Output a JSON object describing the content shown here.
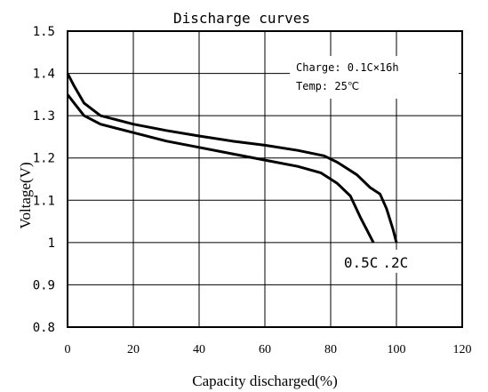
{
  "chart_data": {
    "type": "line",
    "title": "Discharge curves",
    "xlabel": "Capacity discharged(%)",
    "ylabel": "Voltage(V)",
    "xlim": [
      0,
      120
    ],
    "ylim": [
      0.8,
      1.5
    ],
    "x_ticks": [
      "0",
      "20",
      "40",
      "60",
      "80",
      "100",
      "120"
    ],
    "y_ticks": [
      "0.8",
      "0.9",
      "1",
      "1.1",
      "1.2",
      "1.3",
      "1.4",
      "1.5"
    ],
    "grid": true,
    "annotations": [
      "Charge: 0.1C×16h",
      "Temp: 25℃"
    ],
    "series": [
      {
        "name": "0.2C",
        "points": [
          [
            0,
            1.4
          ],
          [
            2,
            1.37
          ],
          [
            5,
            1.33
          ],
          [
            10,
            1.3
          ],
          [
            20,
            1.28
          ],
          [
            30,
            1.265
          ],
          [
            40,
            1.252
          ],
          [
            50,
            1.24
          ],
          [
            60,
            1.23
          ],
          [
            70,
            1.218
          ],
          [
            78,
            1.205
          ],
          [
            82,
            1.19
          ],
          [
            88,
            1.16
          ],
          [
            92,
            1.13
          ],
          [
            95,
            1.115
          ],
          [
            97,
            1.08
          ],
          [
            99,
            1.03
          ],
          [
            100,
            1.0
          ]
        ]
      },
      {
        "name": "0.5C",
        "points": [
          [
            0,
            1.35
          ],
          [
            2,
            1.33
          ],
          [
            5,
            1.3
          ],
          [
            10,
            1.28
          ],
          [
            20,
            1.26
          ],
          [
            30,
            1.24
          ],
          [
            40,
            1.225
          ],
          [
            50,
            1.21
          ],
          [
            60,
            1.195
          ],
          [
            70,
            1.18
          ],
          [
            77,
            1.165
          ],
          [
            82,
            1.14
          ],
          [
            86,
            1.11
          ],
          [
            89,
            1.06
          ],
          [
            91,
            1.03
          ],
          [
            93,
            1.0
          ]
        ]
      }
    ]
  }
}
